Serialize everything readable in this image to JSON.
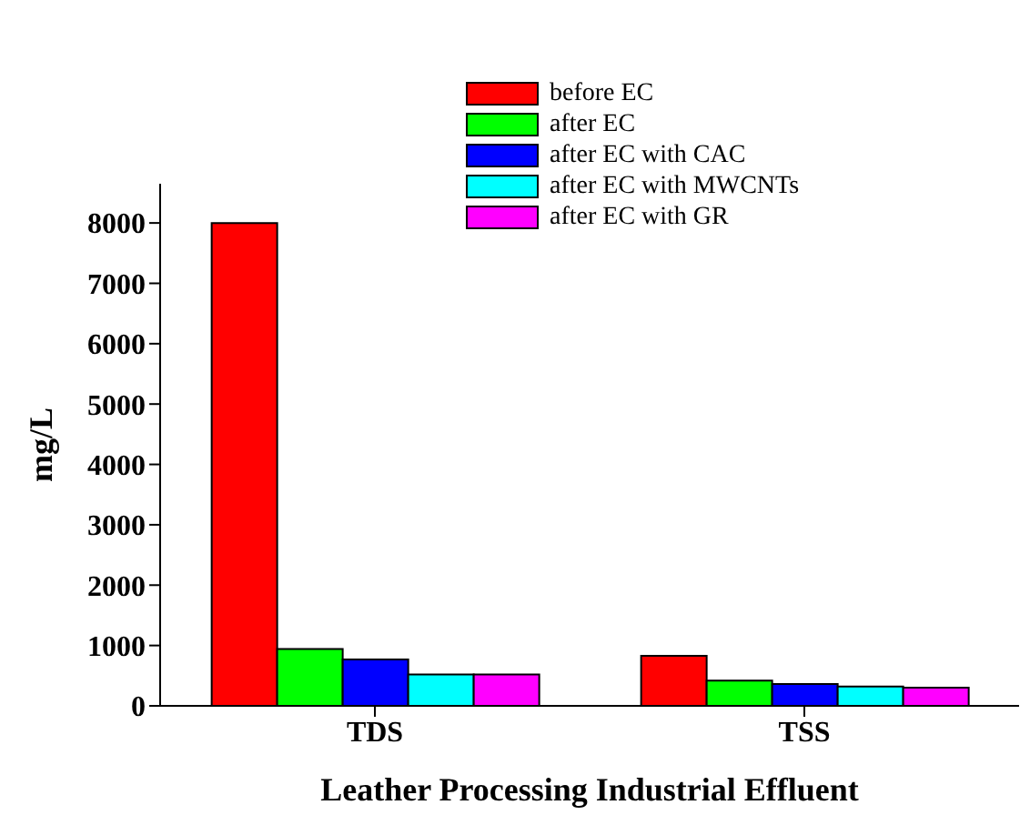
{
  "chart_data": {
    "type": "bar",
    "xlabel": "Leather Processing Industrial Effluent",
    "ylabel": "mg/L",
    "categories": [
      "TDS",
      "TSS"
    ],
    "series": [
      {
        "name": "before EC",
        "color": "#ff0000",
        "values": [
          8000,
          830
        ]
      },
      {
        "name": "after EC",
        "color": "#00ff00",
        "values": [
          940,
          420
        ]
      },
      {
        "name": "after EC with CAC",
        "color": "#0000ff",
        "values": [
          770,
          360
        ]
      },
      {
        "name": "after EC with MWCNTs",
        "color": "#00ffff",
        "values": [
          520,
          320
        ]
      },
      {
        "name": "after EC with GR",
        "color": "#ff00ff",
        "values": [
          520,
          300
        ]
      }
    ],
    "ylim": [
      0,
      8650
    ],
    "yticks": [
      0,
      1000,
      2000,
      3000,
      4000,
      5000,
      6000,
      7000,
      8000
    ],
    "grid": false,
    "legend": "top right"
  }
}
